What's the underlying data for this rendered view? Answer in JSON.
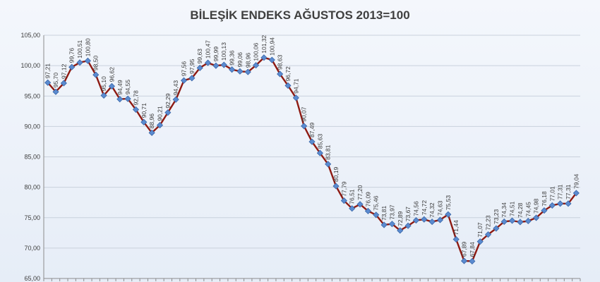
{
  "chart_data": {
    "type": "line",
    "title": "BİLEŞİK ENDEKS AĞUSTOS 2013=100",
    "xlabel": "",
    "ylabel": "",
    "ylim": [
      65,
      105
    ],
    "y_ticks": [
      "105,00",
      "100,00",
      "95,00",
      "90,00",
      "85,00",
      "80,00",
      "75,00",
      "70,00",
      "65,00"
    ],
    "grid": true,
    "legend": "none",
    "colors": {
      "line": "#8e1a12",
      "marker": "#5b8bd0",
      "title": "#3f3f3f"
    },
    "series": [
      {
        "values": [
          97.21,
          95.7,
          97.12,
          99.76,
          100.51,
          100.8,
          98.5,
          95.1,
          96.62,
          94.49,
          94.55,
          92.78,
          90.71,
          88.96,
          90.21,
          92.29,
          94.43,
          97.56,
          97.95,
          99.63,
          100.47,
          99.99,
          100.13,
          99.36,
          99.06,
          98.96,
          100.06,
          101.32,
          100.94,
          98.63,
          96.72,
          94.71,
          90.07,
          87.49,
          85.63,
          83.81,
          80.19,
          77.79,
          76.51,
          77.2,
          76.09,
          75.46,
          73.81,
          73.97,
          72.89,
          73.67,
          74.56,
          74.72,
          74.32,
          74.63,
          75.53,
          71.44,
          67.89,
          67.84,
          71.07,
          72.23,
          73.23,
          74.34,
          74.51,
          74.28,
          74.45,
          74.98,
          76.18,
          77.01,
          77.31,
          77.31,
          79.04
        ],
        "labels": [
          "97,21",
          "95,70",
          "97,12",
          "99,76",
          "100,51",
          "100,80",
          "98,50",
          "95,10",
          "96,62",
          "94,49",
          "94,55",
          "92,78",
          "90,71",
          "88,96",
          "90,21",
          "92,29",
          "94,43",
          "97,56",
          "97,95",
          "99,63",
          "100,47",
          "99,99",
          "100,13",
          "99,36",
          "99,06",
          "98,96",
          "100,06",
          "101,32",
          "100,94",
          "98,63",
          "96,72",
          "94,71",
          "90,07",
          "87,49",
          "85,63",
          "83,81",
          "80,19",
          "77,79",
          "76,51",
          "77,20",
          "76,09",
          "75,46",
          "73,81",
          "73,97",
          "72,89",
          "73,67",
          "74,56",
          "74,72",
          "74,32",
          "74,63",
          "75,53",
          "71,44",
          "67,89",
          "67,84",
          "71,07",
          "72,23",
          "73,23",
          "74,34",
          "74,51",
          "74,28",
          "74,45",
          "74,98",
          "76,18",
          "77,01",
          "77,31",
          "77,31",
          "79,04"
        ]
      }
    ]
  }
}
